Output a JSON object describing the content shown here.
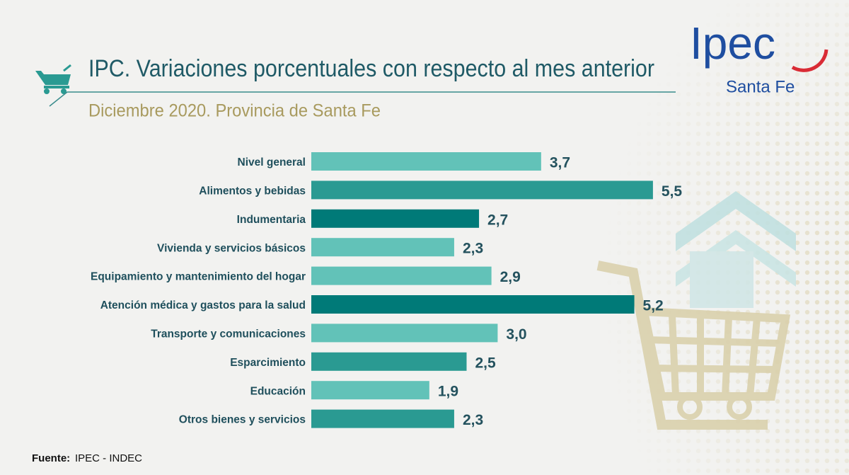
{
  "chart_data": {
    "type": "bar",
    "orientation": "horizontal",
    "title": "IPC. Variaciones porcentuales con respecto al mes anterior",
    "subtitle": "Diciembre 2020. Provincia de Santa Fe",
    "categories": [
      "Nivel general",
      "Alimentos y bebidas",
      "Indumentaria",
      "Vivienda y servicios básicos",
      "Equipamiento y mantenimiento del hogar",
      "Atención médica y gastos para la salud",
      "Transporte y comunicaciones",
      "Esparcimiento",
      "Educación",
      "Otros bienes y servicios"
    ],
    "values": [
      3.7,
      5.5,
      2.7,
      2.3,
      2.9,
      5.2,
      3.0,
      2.5,
      1.9,
      2.3
    ],
    "value_labels": [
      "3,7",
      "5,5",
      "2,7",
      "2,3",
      "2,9",
      "5,2",
      "3,0",
      "2,5",
      "1,9",
      "2,3"
    ],
    "colors": [
      "#62c2b8",
      "#2a9a92",
      "#007a78",
      "#62c2b8",
      "#62c2b8",
      "#007a78",
      "#62c2b8",
      "#2a9a92",
      "#62c2b8",
      "#2a9a92"
    ],
    "source_label": "Fuente:",
    "source": "IPEC - INDEC",
    "logo_text": "Ipec",
    "logo_subtitle": "Santa Fe"
  }
}
